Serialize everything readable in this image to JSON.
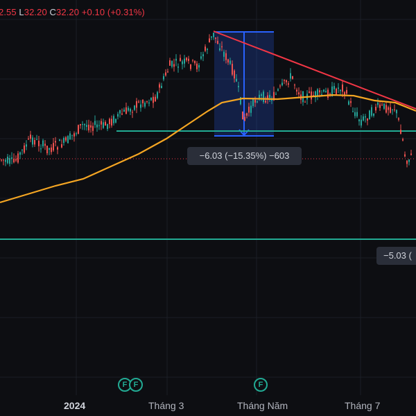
{
  "header": {
    "h_value": "2.55",
    "l_prefix": "L",
    "l_value": "32.20",
    "c_prefix": "C",
    "c_value": "32.20",
    "change": "+0.10 (+0.31%)"
  },
  "measure_label": "−6.03 (−15.35%) −603",
  "measure_label_2": "−5.03 (",
  "x_axis": {
    "labels": [
      "2024",
      "Tháng 3",
      "Tháng Năm",
      "Tháng 7"
    ]
  },
  "event_badges": [
    "F",
    "F",
    "F"
  ],
  "colors": {
    "background": "#0d0e12",
    "up": "#26a69a",
    "down": "#ef5350",
    "moving_average": "#f5a623",
    "trendline": "#f23645",
    "horizontal_line": "#22ab94",
    "measure": "#2962ff"
  },
  "chart_data": {
    "type": "candlestick",
    "title": "",
    "series": [
      {
        "name": "",
        "type": "candlestick"
      },
      {
        "name": "",
        "type": "line",
        "role": "moving-average"
      }
    ],
    "x_ticks": [
      "2024",
      "Tháng 3",
      "Tháng Năm",
      "Tháng 7"
    ],
    "measurement": {
      "change": -6.03,
      "percent": -15.35,
      "ticks": -603
    },
    "grid": true
  }
}
